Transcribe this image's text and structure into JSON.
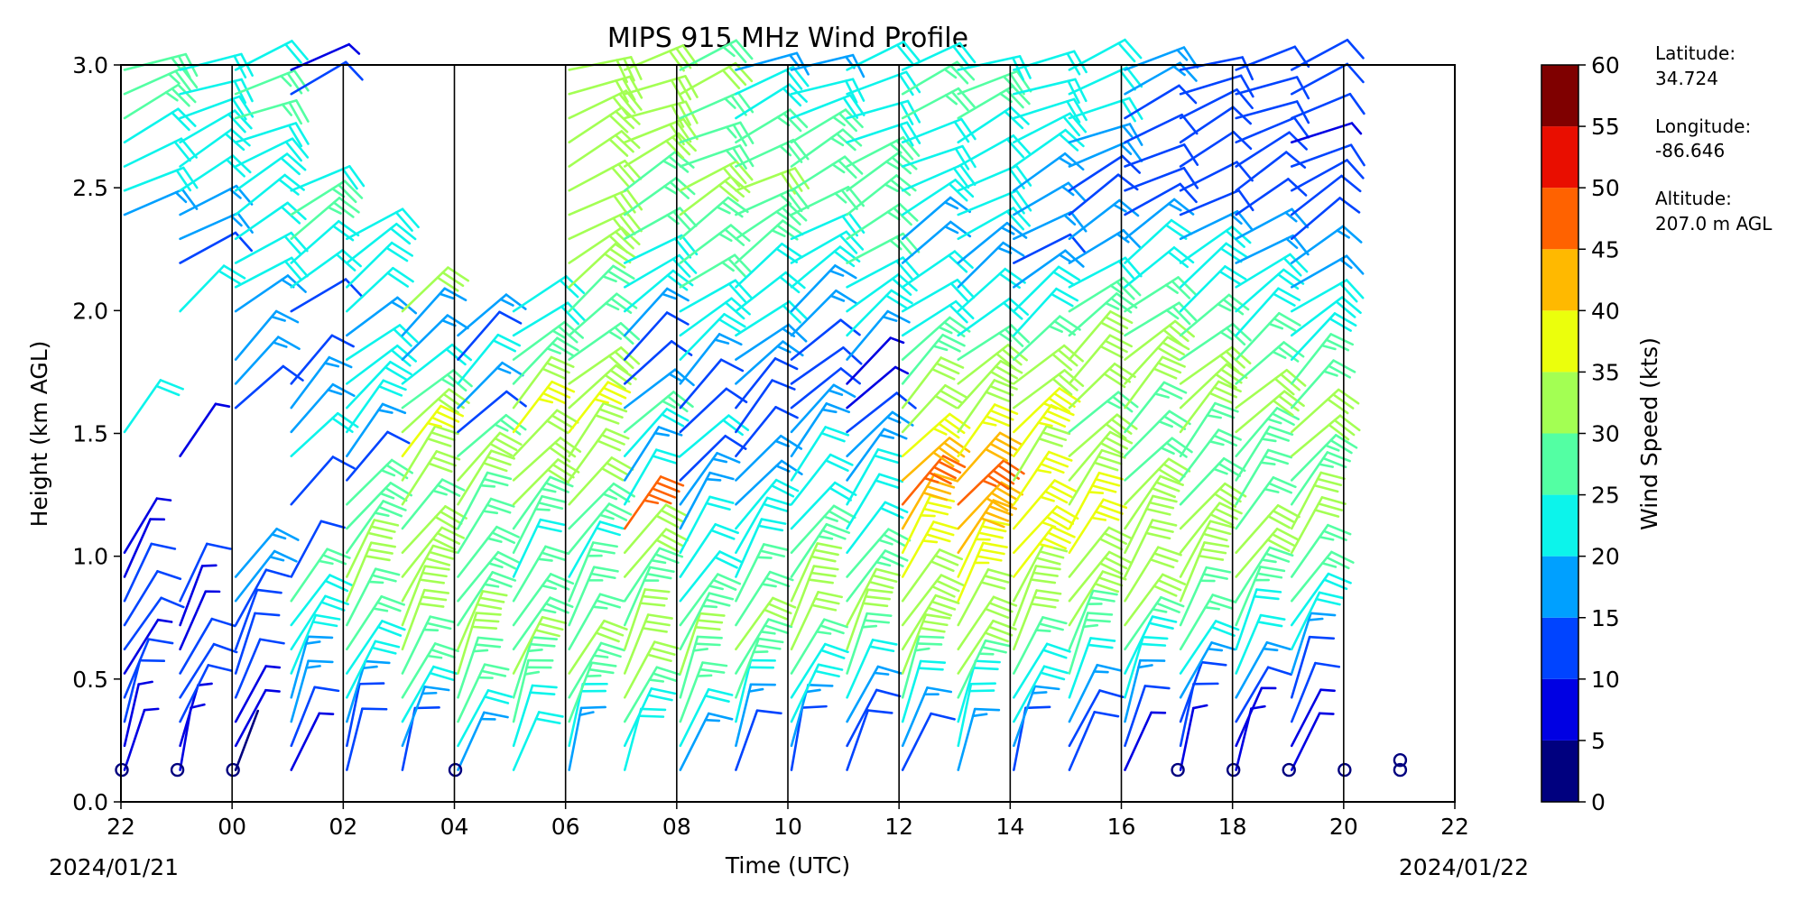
{
  "chart_data": {
    "type": "wind-barb",
    "title": "MIPS 915 MHz Wind Profile",
    "xlabel": "Time (UTC)",
    "ylabel": "Height (km AGL)",
    "xlim": [
      0,
      24
    ],
    "ylim": [
      0,
      3.0
    ],
    "x_ticks": [
      0,
      2,
      4,
      6,
      8,
      10,
      12,
      14,
      16,
      18,
      20,
      22,
      24
    ],
    "x_tick_labels": [
      "22",
      "00",
      "02",
      "04",
      "06",
      "08",
      "10",
      "12",
      "14",
      "16",
      "18",
      "20",
      "22"
    ],
    "y_ticks": [
      0.0,
      0.5,
      1.0,
      1.5,
      2.0,
      2.5,
      3.0
    ],
    "y_tick_labels": [
      "0.0",
      "0.5",
      "1.0",
      "1.5",
      "2.0",
      "2.5",
      "3.0"
    ],
    "start_date": "2024/01/21",
    "end_date": "2024/01/22",
    "hour_boundaries": [
      2,
      4,
      6,
      8,
      10,
      12,
      14,
      16,
      18,
      20,
      22
    ],
    "profiles": [
      {
        "time": 0.0,
        "speed": [
          9,
          8,
          10,
          12,
          9,
          11,
          10,
          12,
          6,
          5,
          0,
          0,
          0,
          0,
          22,
          0,
          0,
          0,
          0,
          0,
          0,
          0,
          0,
          18,
          22,
          23,
          24,
          25,
          25,
          26
        ]
      },
      {
        "time": 1.0,
        "speed": [
          5,
          8,
          11,
          12,
          10,
          9,
          7,
          11,
          0,
          0,
          0,
          0,
          0,
          9,
          0,
          0,
          0,
          0,
          0,
          20,
          0,
          14,
          15,
          18,
          20,
          22,
          22,
          24,
          24,
          22
        ]
      },
      {
        "time": 2.0,
        "speed": [
          4,
          6,
          8,
          11,
          12,
          13,
          14,
          16,
          18,
          0,
          0,
          0,
          0,
          0,
          0,
          12,
          15,
          18,
          0,
          16,
          20,
          22,
          22,
          24,
          21,
          22,
          24,
          26,
          25,
          24
        ]
      },
      {
        "time": 3.0,
        "speed": [
          8,
          12,
          15,
          18,
          20,
          22,
          24,
          25,
          10,
          0,
          0,
          12,
          0,
          20,
          16,
          15,
          14,
          0,
          0,
          12,
          20,
          22,
          25,
          25,
          22,
          0,
          0,
          0,
          10,
          8
        ]
      },
      {
        "time": 4.0,
        "speed": [
          10,
          14,
          18,
          22,
          24,
          26,
          28,
          30,
          30,
          25,
          27,
          25,
          12,
          16,
          20,
          22,
          24,
          20,
          18,
          22,
          24,
          24,
          20,
          0,
          0,
          0,
          0,
          0,
          0,
          0
        ]
      },
      {
        "time": 5.0,
        "speed": [
          14,
          18,
          22,
          25,
          28,
          30,
          32,
          34,
          32,
          30,
          28,
          30,
          32,
          35,
          30,
          26,
          22,
          18,
          16,
          30,
          0,
          0,
          0,
          0,
          0,
          0,
          0,
          0,
          0,
          0
        ]
      },
      {
        "time": 6.0,
        "speed": [
          18,
          22,
          25,
          28,
          30,
          30,
          28,
          26,
          25,
          27,
          28,
          30,
          32,
          28,
          12,
          16,
          22,
          14,
          18,
          0,
          0,
          0,
          0,
          0,
          0,
          0,
          0,
          0,
          0,
          0
        ]
      },
      {
        "time": 7.0,
        "speed": [
          20,
          24,
          26,
          28,
          30,
          28,
          26,
          25,
          24,
          26,
          28,
          30,
          32,
          34,
          36,
          30,
          28,
          26,
          24,
          22,
          0,
          0,
          0,
          0,
          0,
          0,
          0,
          0,
          0,
          0
        ]
      },
      {
        "time": 8.0,
        "speed": [
          18,
          22,
          26,
          28,
          30,
          28,
          26,
          25,
          24,
          26,
          28,
          30,
          32,
          34,
          35,
          33,
          30,
          28,
          26,
          28,
          30,
          30,
          32,
          32,
          34,
          34,
          32,
          30,
          30,
          32
        ]
      },
      {
        "time": 9.0,
        "speed": [
          20,
          24,
          28,
          30,
          32,
          30,
          28,
          26,
          30,
          34,
          45,
          20,
          18,
          22,
          28,
          15,
          12,
          14,
          18,
          20,
          22,
          24,
          26,
          28,
          28,
          30,
          30,
          32,
          32,
          30
        ]
      },
      {
        "time": 10.0,
        "speed": [
          18,
          22,
          25,
          28,
          30,
          28,
          26,
          24,
          22,
          20,
          18,
          16,
          14,
          20,
          10,
          12,
          18,
          20,
          22,
          24,
          26,
          28,
          28,
          30,
          30,
          28,
          26,
          28,
          30,
          28
        ]
      },
      {
        "time": 11.0,
        "speed": [
          14,
          18,
          22,
          25,
          28,
          30,
          28,
          26,
          24,
          22,
          20,
          18,
          16,
          14,
          12,
          14,
          16,
          18,
          20,
          22,
          24,
          26,
          26,
          28,
          30,
          28,
          26,
          24,
          22,
          18
        ]
      },
      {
        "time": 12.0,
        "speed": [
          12,
          16,
          20,
          24,
          28,
          30,
          32,
          30,
          28,
          26,
          24,
          22,
          20,
          18,
          16,
          14,
          12,
          14,
          16,
          18,
          20,
          22,
          24,
          26,
          28,
          28,
          26,
          24,
          20,
          16
        ]
      },
      {
        "time": 13.0,
        "speed": [
          10,
          14,
          18,
          22,
          26,
          30,
          30,
          28,
          26,
          24,
          22,
          20,
          18,
          16,
          14,
          8,
          6,
          18,
          20,
          22,
          24,
          26,
          26,
          28,
          28,
          26,
          24,
          22,
          22,
          20
        ]
      },
      {
        "time": 14.0,
        "speed": [
          14,
          18,
          22,
          26,
          30,
          32,
          34,
          34,
          35,
          38,
          42,
          45,
          40,
          35,
          32,
          30,
          28,
          26,
          24,
          22,
          20,
          18,
          18,
          20,
          22,
          24,
          24,
          26,
          26,
          24
        ]
      },
      {
        "time": 15.0,
        "speed": [
          16,
          20,
          24,
          28,
          30,
          32,
          34,
          36,
          38,
          40,
          44,
          48,
          40,
          36,
          34,
          32,
          30,
          26,
          22,
          20,
          18,
          18,
          20,
          22,
          22,
          24,
          24,
          26,
          26,
          24
        ]
      },
      {
        "time": 16.0,
        "speed": [
          12,
          16,
          20,
          24,
          28,
          30,
          32,
          34,
          36,
          38,
          38,
          36,
          34,
          38,
          36,
          34,
          32,
          28,
          24,
          20,
          16,
          14,
          16,
          18,
          18,
          20,
          22,
          22,
          24,
          24
        ]
      },
      {
        "time": 17.0,
        "speed": [
          10,
          14,
          18,
          22,
          26,
          28,
          30,
          32,
          34,
          36,
          36,
          34,
          32,
          30,
          28,
          30,
          32,
          30,
          28,
          26,
          22,
          18,
          16,
          14,
          14,
          16,
          18,
          20,
          22,
          22
        ]
      },
      {
        "time": 18.0,
        "speed": [
          8,
          12,
          16,
          20,
          24,
          28,
          30,
          32,
          34,
          34,
          32,
          30,
          28,
          26,
          28,
          30,
          32,
          30,
          28,
          26,
          24,
          20,
          16,
          14,
          12,
          12,
          14,
          14,
          16,
          16
        ]
      },
      {
        "time": 19.0,
        "speed": [
          6,
          10,
          14,
          18,
          22,
          26,
          28,
          30,
          32,
          32,
          30,
          28,
          26,
          28,
          30,
          32,
          30,
          28,
          26,
          24,
          22,
          20,
          16,
          14,
          12,
          10,
          10,
          12,
          14,
          14
        ]
      },
      {
        "time": 20.0,
        "speed": [
          6,
          8,
          12,
          16,
          20,
          24,
          26,
          28,
          30,
          30,
          28,
          26,
          26,
          28,
          30,
          30,
          28,
          26,
          24,
          22,
          20,
          18,
          16,
          14,
          12,
          10,
          10,
          12,
          12,
          14
        ]
      },
      {
        "time": 21.0,
        "speed": [
          5,
          8,
          10,
          14,
          18,
          22,
          24,
          26,
          28,
          30,
          30,
          28,
          28,
          30,
          30,
          28,
          26,
          24,
          22,
          20,
          18,
          16,
          14,
          12,
          10,
          10,
          8,
          10,
          10,
          12
        ]
      }
    ],
    "calm_markers": [
      {
        "time": 0.0,
        "height": 0.13
      },
      {
        "time": 1.0,
        "height": 0.13
      },
      {
        "time": 2.0,
        "height": 0.13
      },
      {
        "time": 6.0,
        "height": 0.13
      },
      {
        "time": 19.0,
        "height": 0.13
      },
      {
        "time": 20.0,
        "height": 0.13
      },
      {
        "time": 21.0,
        "height": 0.13
      },
      {
        "time": 22.0,
        "height": 0.13
      },
      {
        "time": 23.0,
        "height": 0.13
      },
      {
        "time": 23.0,
        "height": 0.17
      }
    ],
    "colorbar": {
      "label": "Wind Speed (kts)",
      "min": 0,
      "max": 60,
      "step": 5,
      "tick_labels": [
        "0",
        "5",
        "10",
        "15",
        "20",
        "25",
        "30",
        "35",
        "40",
        "45",
        "50",
        "55",
        "60"
      ],
      "colors": [
        "#00007f",
        "#0000e3",
        "#0044ff",
        "#00a0ff",
        "#0cf4eb",
        "#53ffa3",
        "#a3ff53",
        "#ebff0c",
        "#ffb900",
        "#ff6200",
        "#e90e00",
        "#7f0000"
      ]
    },
    "station_info": [
      {
        "label": "Latitude:",
        "value": "34.724"
      },
      {
        "label": "Longitude:",
        "value": "-86.646"
      },
      {
        "label": "Altitude:",
        "value": "207.0 m AGL"
      }
    ],
    "grid": false,
    "legend": "colorbar-right"
  }
}
